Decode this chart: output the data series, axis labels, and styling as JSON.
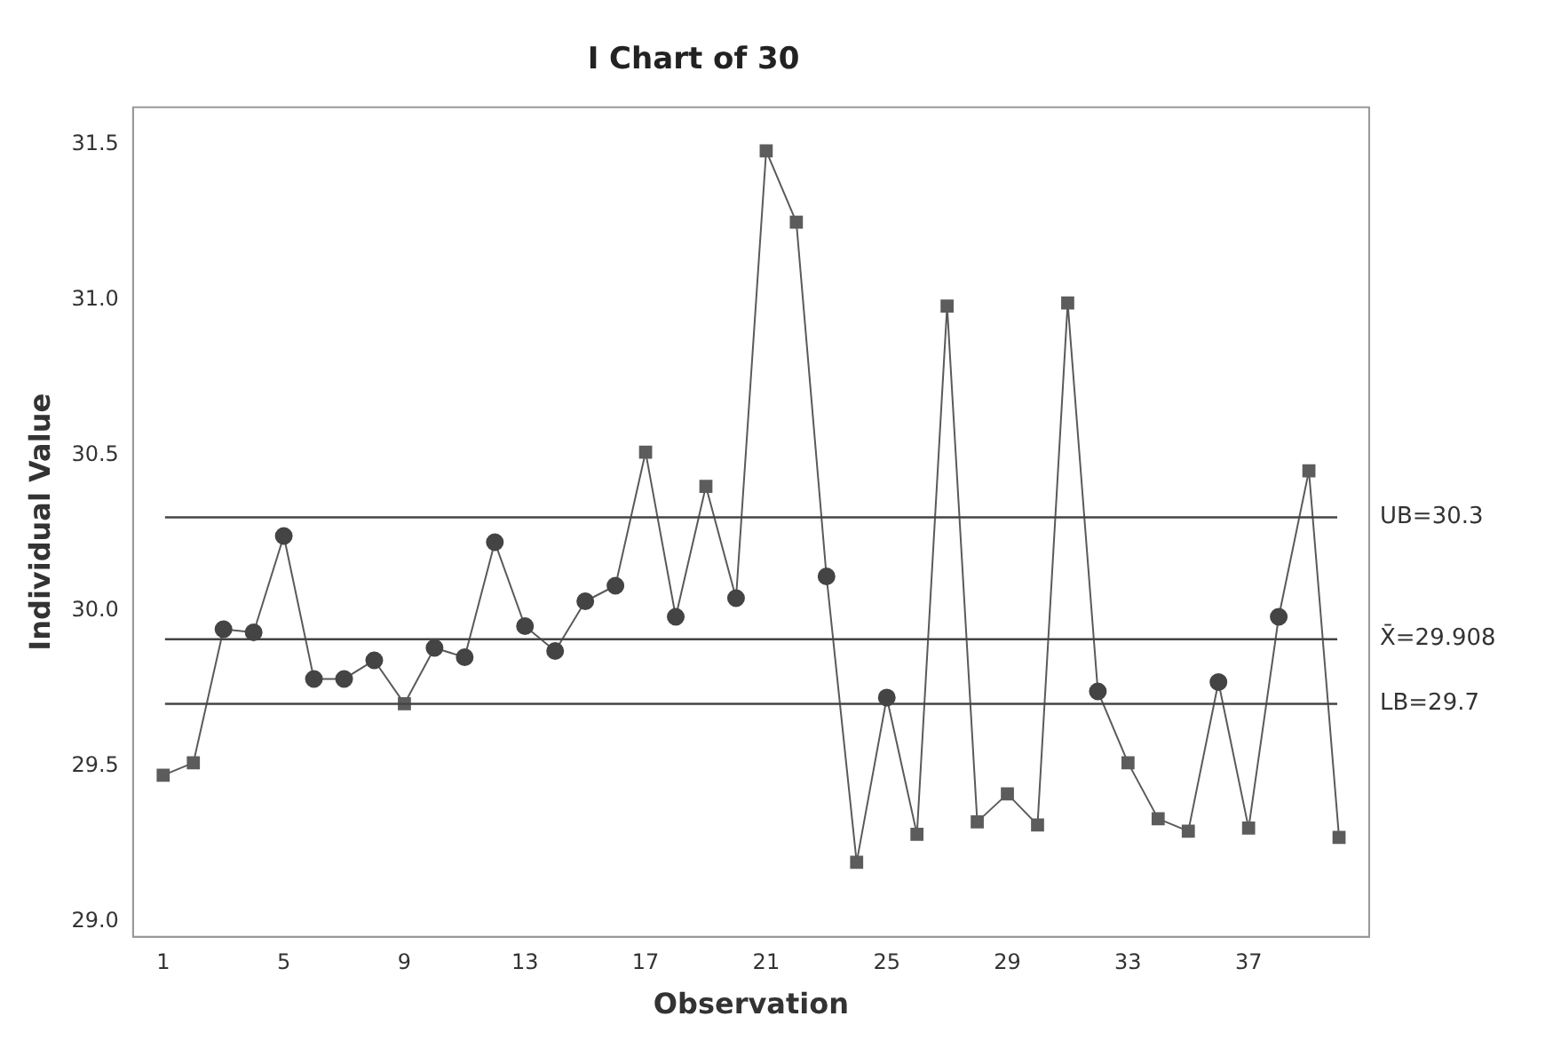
{
  "chart_data": {
    "type": "line",
    "title": "I Chart of 30",
    "xlabel": "Observation",
    "ylabel": "Individual Value",
    "xlim": [
      0,
      41
    ],
    "xticks": [
      1,
      5,
      9,
      13,
      17,
      21,
      25,
      29,
      33,
      37
    ],
    "ylim": [
      28.95,
      31.62
    ],
    "yticks": [
      {
        "value": 29,
        "label": "29.0"
      },
      29.5,
      {
        "value": 30,
        "label": "30.0"
      },
      30.5,
      {
        "value": 31,
        "label": "31.0"
      },
      31.5
    ],
    "grid": false,
    "legend": false,
    "series": [
      {
        "marker": "none",
        "color": "#5a5a5a",
        "x": [
          1,
          2,
          3,
          4,
          5,
          6,
          7,
          8,
          9,
          10,
          11,
          12,
          13,
          14,
          15,
          16,
          17,
          18,
          19,
          20,
          21,
          22,
          23,
          24,
          25,
          26,
          27,
          28,
          29,
          30,
          31,
          32,
          33,
          34,
          35,
          36,
          37,
          38,
          39,
          40
        ],
        "values": [
          29.47,
          29.51,
          29.94,
          29.93,
          30.24,
          29.78,
          29.78,
          29.84,
          29.7,
          29.88,
          29.85,
          30.22,
          29.95,
          29.87,
          30.03,
          30.08,
          30.51,
          29.98,
          30.4,
          30.04,
          31.48,
          31.25,
          30.11,
          29.19,
          29.72,
          29.28,
          30.98,
          29.32,
          29.41,
          29.31,
          30.99,
          29.74,
          29.51,
          29.33,
          29.29,
          29.77,
          29.3,
          29.98,
          30.45,
          29.27
        ]
      },
      {
        "type": "scatter",
        "marker": "square",
        "color": "#5c5c5c",
        "x": [
          1,
          2,
          9,
          17,
          19,
          21,
          22,
          24,
          26,
          27,
          28,
          29,
          30,
          31,
          33,
          34,
          35,
          37,
          39,
          40
        ],
        "values": [
          29.47,
          29.51,
          29.7,
          30.51,
          30.4,
          31.48,
          31.25,
          29.19,
          29.28,
          30.98,
          29.32,
          29.41,
          29.31,
          30.99,
          29.51,
          29.33,
          29.29,
          29.3,
          30.45,
          29.27
        ]
      },
      {
        "type": "scatter",
        "marker": "circle",
        "color": "#444444",
        "x": [
          3,
          4,
          5,
          6,
          7,
          8,
          10,
          11,
          12,
          13,
          14,
          15,
          16,
          18,
          20,
          23,
          25,
          32,
          36,
          38
        ],
        "values": [
          29.94,
          29.93,
          30.24,
          29.78,
          29.78,
          29.84,
          29.88,
          29.85,
          30.22,
          29.95,
          29.87,
          30.03,
          30.08,
          29.98,
          30.04,
          30.11,
          29.72,
          29.74,
          29.77,
          29.98
        ]
      }
    ],
    "ref_lines": [
      {
        "axis": "y",
        "value": 30.3,
        "label": "UB=30.3",
        "color": "#444444"
      },
      {
        "axis": "y",
        "value": 29.908,
        "label": "X̄=29.908",
        "color": "#444444"
      },
      {
        "axis": "y",
        "value": 29.7,
        "label": "LB=29.7",
        "color": "#444444"
      }
    ]
  }
}
